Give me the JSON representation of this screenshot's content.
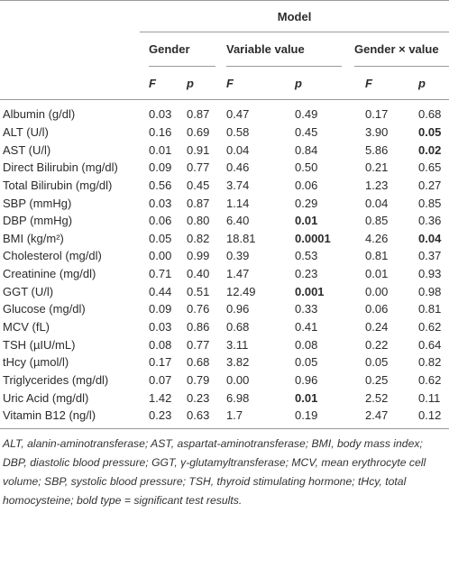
{
  "table": {
    "header": {
      "model": "Model",
      "groups": [
        "Gender",
        "Variable value",
        "Gender × value"
      ],
      "subheaders": [
        "F",
        "p",
        "F",
        "p",
        "F",
        "p"
      ]
    },
    "rows": [
      [
        "Albumin (g/dl)",
        "0.03",
        "0.87",
        "0.47",
        "0.49",
        "0.17",
        "0.68"
      ],
      [
        "ALT (U/l)",
        "0.16",
        "0.69",
        "0.58",
        "0.45",
        "3.90",
        "0.05"
      ],
      [
        "AST (U/l)",
        "0.01",
        "0.91",
        "0.04",
        "0.84",
        "5.86",
        "0.02"
      ],
      [
        "Direct Bilirubin (mg/dl)",
        "0.09",
        "0.77",
        "0.46",
        "0.50",
        "0.21",
        "0.65"
      ],
      [
        "Total Bilirubin (mg/dl)",
        "0.56",
        "0.45",
        "3.74",
        "0.06",
        "1.23",
        "0.27"
      ],
      [
        "SBP (mmHg)",
        "0.03",
        "0.87",
        "1.14",
        "0.29",
        "0.04",
        "0.85"
      ],
      [
        "DBP (mmHg)",
        "0.06",
        "0.80",
        "6.40",
        "0.01",
        "0.85",
        "0.36"
      ],
      [
        "BMI (kg/m²)",
        "0.05",
        "0.82",
        "18.81",
        "0.0001",
        "4.26",
        "0.04"
      ],
      [
        "Cholesterol (mg/dl)",
        "0.00",
        "0.99",
        "0.39",
        "0.53",
        "0.81",
        "0.37"
      ],
      [
        "Creatinine (mg/dl)",
        "0.71",
        "0.40",
        "1.47",
        "0.23",
        "0.01",
        "0.93"
      ],
      [
        "GGT (U/l)",
        "0.44",
        "0.51",
        "12.49",
        "0.001",
        "0.00",
        "0.98"
      ],
      [
        "Glucose (mg/dl)",
        "0.09",
        "0.76",
        "0.96",
        "0.33",
        "0.06",
        "0.81"
      ],
      [
        "MCV (fL)",
        "0.03",
        "0.86",
        "0.68",
        "0.41",
        "0.24",
        "0.62"
      ],
      [
        "TSH (µIU/mL)",
        "0.08",
        "0.77",
        "3.11",
        "0.08",
        "0.22",
        "0.64"
      ],
      [
        "tHcy (µmol/l)",
        "0.17",
        "0.68",
        "3.82",
        "0.05",
        "0.05",
        "0.82"
      ],
      [
        "Triglycerides (mg/dl)",
        "0.07",
        "0.79",
        "0.00",
        "0.96",
        "0.25",
        "0.62"
      ],
      [
        "Uric Acid (mg/dl)",
        "1.42",
        "0.23",
        "6.98",
        "0.01",
        "2.52",
        "0.11"
      ],
      [
        "Vitamin B12 (ng/l)",
        "0.23",
        "0.63",
        "1.7",
        "0.19",
        "2.47",
        "0.12"
      ]
    ]
  },
  "footnote": "ALT, alanin-aminotransferase; AST, aspartat-aminotransferase; BMI, body mass index; DBP, diastolic blood pressure; GGT, γ-glutamyltransferase; MCV, mean erythrocyte cell volume; SBP, systolic blood pressure; TSH, thyroid stimulating hormone; tHcy, total homocysteine; bold type = significant test results."
}
